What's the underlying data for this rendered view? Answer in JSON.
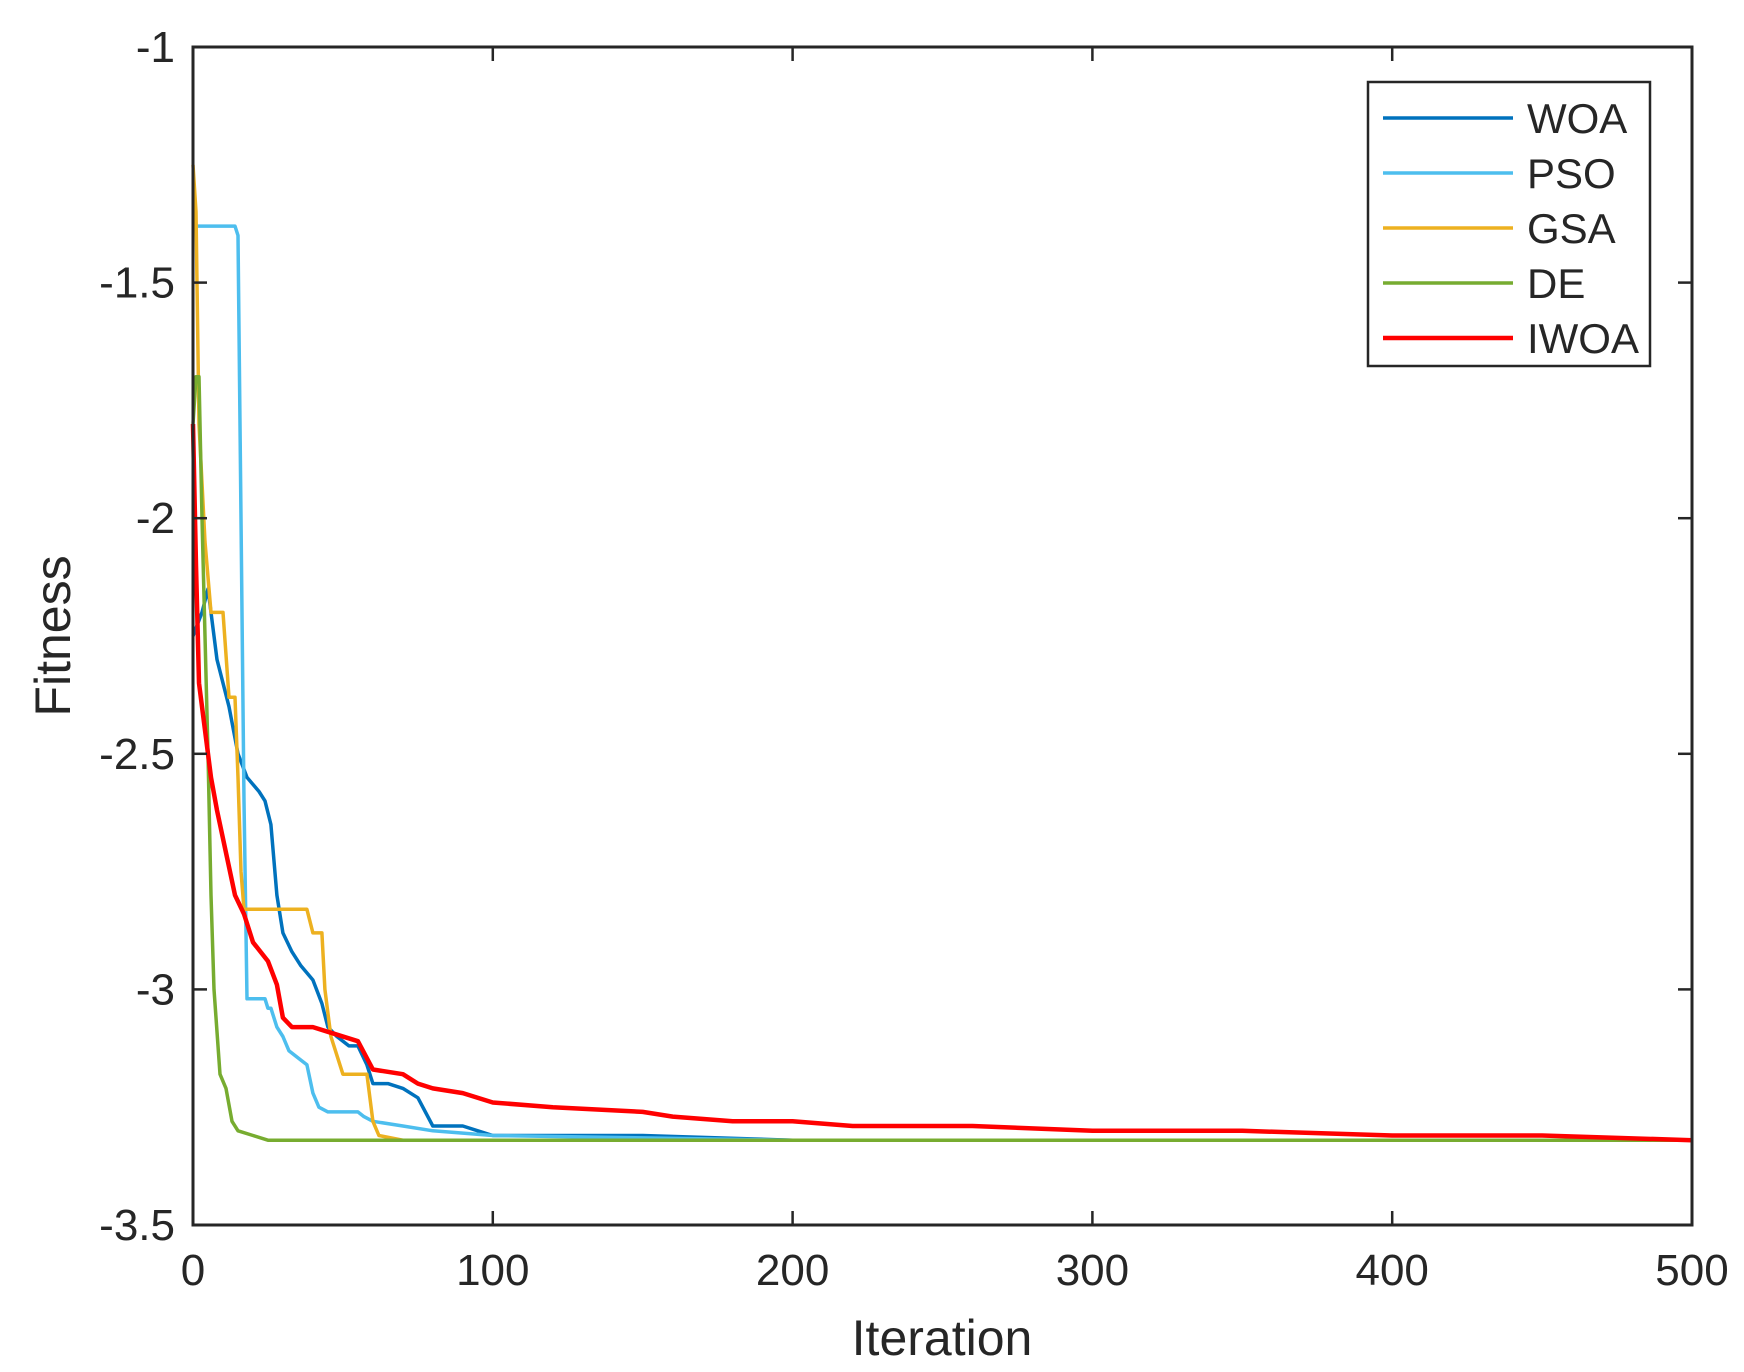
{
  "chart_data": {
    "type": "line",
    "title": "",
    "xlabel": "Iteration",
    "ylabel": "Fitness",
    "xlim": [
      0,
      500
    ],
    "ylim": [
      -3.5,
      -1
    ],
    "xticks": [
      0,
      100,
      200,
      300,
      400,
      500
    ],
    "xtick_labels": [
      "0",
      "100",
      "200",
      "300",
      "400",
      "500"
    ],
    "yticks": [
      -1,
      -1.5,
      -2,
      -2.5,
      -3,
      -3.5
    ],
    "ytick_labels": [
      "-1",
      "-1.5",
      "-2",
      "-2.5",
      "-3",
      "-3.5"
    ],
    "grid": false,
    "legend_position": "top-right",
    "series": [
      {
        "name": "WOA",
        "color": "#0072BD",
        "points": [
          [
            0,
            -2.25
          ],
          [
            3,
            -2.2
          ],
          [
            5,
            -2.15
          ],
          [
            8,
            -2.3
          ],
          [
            12,
            -2.4
          ],
          [
            15,
            -2.5
          ],
          [
            18,
            -2.55
          ],
          [
            22,
            -2.58
          ],
          [
            24,
            -2.6
          ],
          [
            26,
            -2.65
          ],
          [
            28,
            -2.8
          ],
          [
            30,
            -2.88
          ],
          [
            33,
            -2.92
          ],
          [
            36,
            -2.95
          ],
          [
            40,
            -2.98
          ],
          [
            43,
            -3.03
          ],
          [
            45,
            -3.08
          ],
          [
            48,
            -3.1
          ],
          [
            52,
            -3.12
          ],
          [
            55,
            -3.12
          ],
          [
            58,
            -3.16
          ],
          [
            60,
            -3.2
          ],
          [
            65,
            -3.2
          ],
          [
            70,
            -3.21
          ],
          [
            75,
            -3.23
          ],
          [
            80,
            -3.29
          ],
          [
            90,
            -3.29
          ],
          [
            95,
            -3.3
          ],
          [
            100,
            -3.31
          ],
          [
            150,
            -3.31
          ],
          [
            200,
            -3.32
          ],
          [
            300,
            -3.32
          ],
          [
            400,
            -3.32
          ],
          [
            500,
            -3.32
          ]
        ]
      },
      {
        "name": "PSO",
        "color": "#4DBEEE",
        "points": [
          [
            0,
            -1.38
          ],
          [
            14,
            -1.38
          ],
          [
            15,
            -1.4
          ],
          [
            17,
            -2.6
          ],
          [
            18,
            -3.02
          ],
          [
            24,
            -3.02
          ],
          [
            25,
            -3.04
          ],
          [
            26,
            -3.04
          ],
          [
            28,
            -3.08
          ],
          [
            30,
            -3.1
          ],
          [
            32,
            -3.13
          ],
          [
            36,
            -3.15
          ],
          [
            38,
            -3.16
          ],
          [
            40,
            -3.22
          ],
          [
            42,
            -3.25
          ],
          [
            45,
            -3.26
          ],
          [
            55,
            -3.26
          ],
          [
            57,
            -3.27
          ],
          [
            60,
            -3.28
          ],
          [
            70,
            -3.29
          ],
          [
            80,
            -3.3
          ],
          [
            100,
            -3.31
          ],
          [
            200,
            -3.32
          ],
          [
            300,
            -3.32
          ],
          [
            400,
            -3.32
          ],
          [
            500,
            -3.32
          ]
        ]
      },
      {
        "name": "GSA",
        "color": "#EDB120",
        "points": [
          [
            0,
            -1.25
          ],
          [
            1,
            -1.35
          ],
          [
            2,
            -1.8
          ],
          [
            4,
            -2.05
          ],
          [
            6,
            -2.2
          ],
          [
            10,
            -2.2
          ],
          [
            12,
            -2.38
          ],
          [
            14,
            -2.38
          ],
          [
            15,
            -2.55
          ],
          [
            16,
            -2.75
          ],
          [
            17,
            -2.83
          ],
          [
            38,
            -2.83
          ],
          [
            40,
            -2.88
          ],
          [
            43,
            -2.88
          ],
          [
            44,
            -3
          ],
          [
            46,
            -3.1
          ],
          [
            50,
            -3.18
          ],
          [
            58,
            -3.18
          ],
          [
            60,
            -3.28
          ],
          [
            62,
            -3.31
          ],
          [
            70,
            -3.32
          ],
          [
            100,
            -3.32
          ],
          [
            200,
            -3.32
          ],
          [
            300,
            -3.32
          ],
          [
            400,
            -3.32
          ],
          [
            500,
            -3.32
          ]
        ]
      },
      {
        "name": "DE",
        "color": "#77AC30",
        "points": [
          [
            0,
            -1.8
          ],
          [
            1,
            -1.7
          ],
          [
            2,
            -1.7
          ],
          [
            3,
            -2
          ],
          [
            5,
            -2.5
          ],
          [
            6,
            -2.8
          ],
          [
            7,
            -3
          ],
          [
            9,
            -3.18
          ],
          [
            11,
            -3.21
          ],
          [
            13,
            -3.28
          ],
          [
            15,
            -3.3
          ],
          [
            20,
            -3.31
          ],
          [
            25,
            -3.32
          ],
          [
            100,
            -3.32
          ],
          [
            200,
            -3.32
          ],
          [
            300,
            -3.32
          ],
          [
            400,
            -3.32
          ],
          [
            500,
            -3.32
          ]
        ]
      },
      {
        "name": "IWOA",
        "color": "#FF0000",
        "points": [
          [
            0,
            -1.8
          ],
          [
            1,
            -2.1
          ],
          [
            2,
            -2.35
          ],
          [
            4,
            -2.45
          ],
          [
            6,
            -2.55
          ],
          [
            8,
            -2.62
          ],
          [
            10,
            -2.68
          ],
          [
            12,
            -2.74
          ],
          [
            14,
            -2.8
          ],
          [
            17,
            -2.84
          ],
          [
            20,
            -2.9
          ],
          [
            25,
            -2.94
          ],
          [
            28,
            -2.99
          ],
          [
            30,
            -3.06
          ],
          [
            33,
            -3.08
          ],
          [
            40,
            -3.08
          ],
          [
            45,
            -3.09
          ],
          [
            55,
            -3.11
          ],
          [
            60,
            -3.17
          ],
          [
            70,
            -3.18
          ],
          [
            75,
            -3.2
          ],
          [
            80,
            -3.21
          ],
          [
            90,
            -3.22
          ],
          [
            100,
            -3.24
          ],
          [
            120,
            -3.25
          ],
          [
            150,
            -3.26
          ],
          [
            160,
            -3.27
          ],
          [
            180,
            -3.28
          ],
          [
            200,
            -3.28
          ],
          [
            220,
            -3.29
          ],
          [
            260,
            -3.29
          ],
          [
            300,
            -3.3
          ],
          [
            350,
            -3.3
          ],
          [
            400,
            -3.31
          ],
          [
            450,
            -3.31
          ],
          [
            500,
            -3.32
          ]
        ]
      }
    ]
  }
}
